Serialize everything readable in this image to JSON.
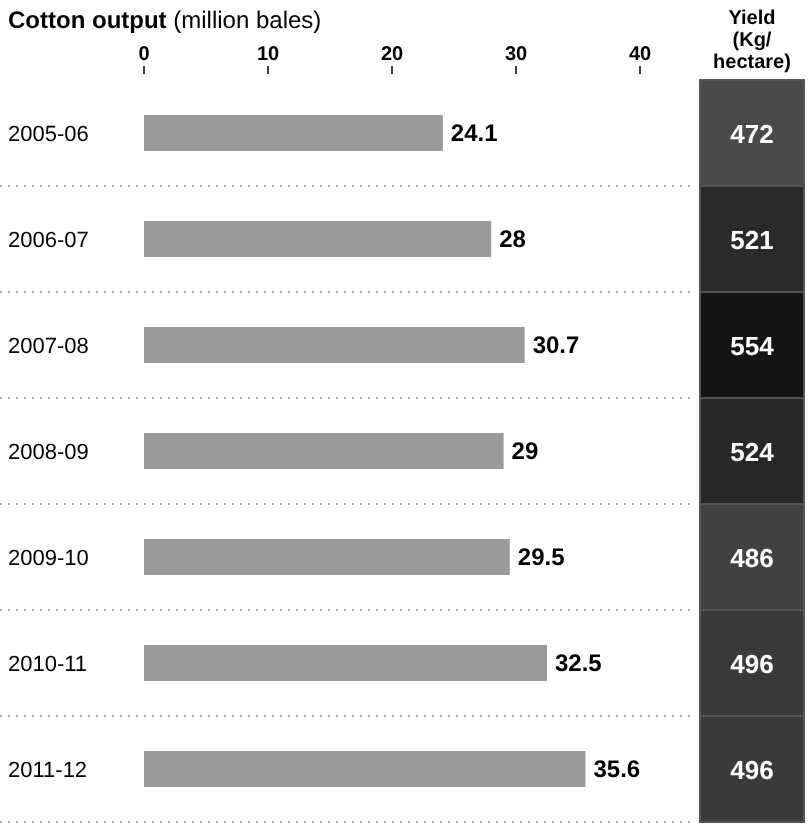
{
  "chart_data": [
    {
      "type": "bar",
      "orientation": "horizontal",
      "title": "Cotton output",
      "subtitle": "(million bales)",
      "categories": [
        "2005-06",
        "2006-07",
        "2007-08",
        "2008-09",
        "2009-10",
        "2010-11",
        "2011-12"
      ],
      "values": [
        24.1,
        28,
        30.7,
        29,
        29.5,
        32.5,
        35.6
      ],
      "color": "#9a9a9a",
      "xlim": [
        0,
        40
      ],
      "xticks": [
        0,
        10,
        20,
        30,
        40
      ],
      "data_labels": true
    },
    {
      "type": "heatmap",
      "categories": [
        "Yield (Kg/ hectare)"
      ],
      "y_categories": [
        null,
        null,
        null,
        null,
        null,
        null,
        null
      ],
      "cells": [
        [
          472
        ],
        [
          521
        ],
        [
          554
        ],
        [
          524
        ],
        [
          486
        ],
        [
          496
        ],
        [
          496
        ]
      ],
      "tick_labels": "x",
      "data_labels": true
    }
  ]
}
